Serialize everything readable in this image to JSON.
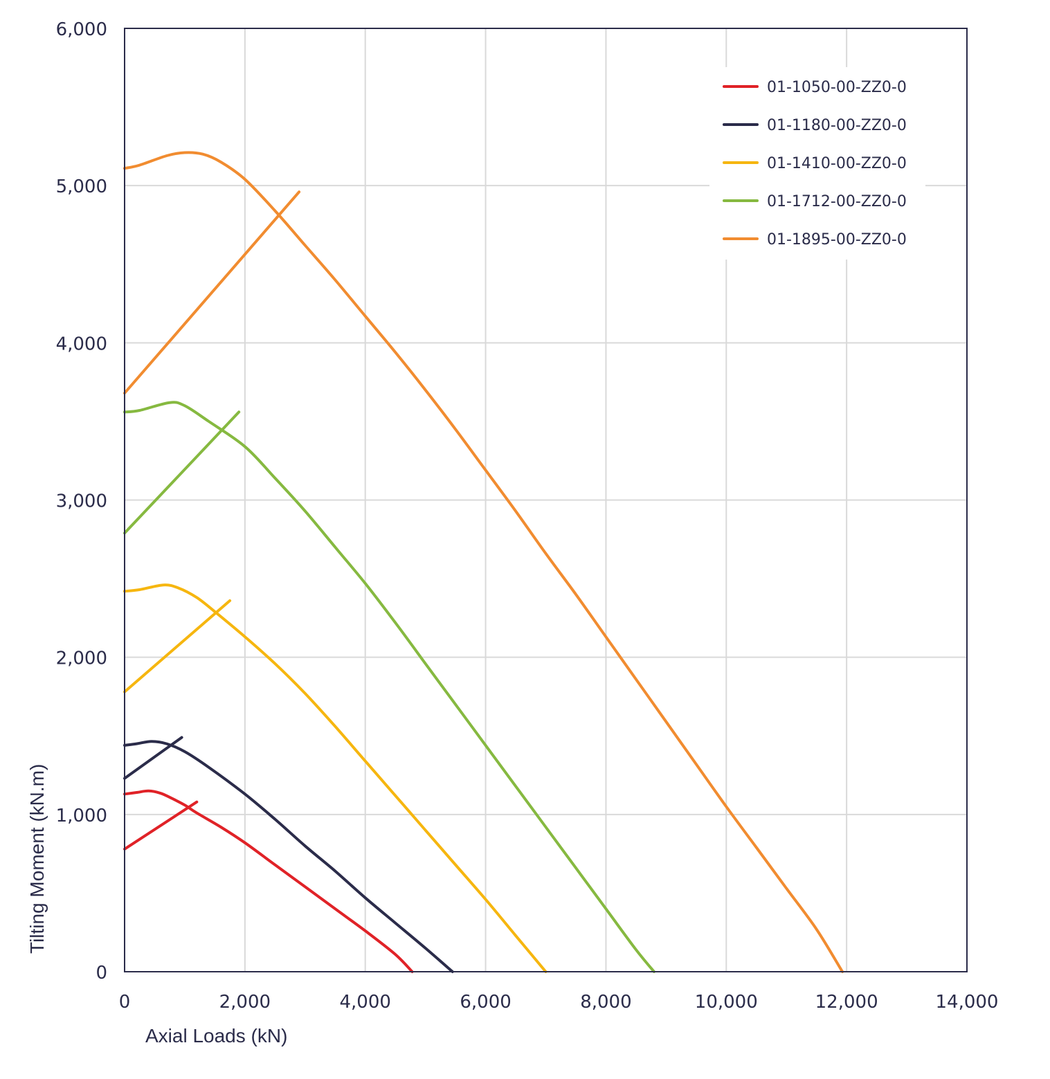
{
  "chart_data": {
    "type": "line",
    "title": "",
    "xlabel": "Axial Loads (kN)",
    "ylabel": "Tilting Moment (kN.m)",
    "xlim": [
      0,
      14000
    ],
    "ylim": [
      0,
      6000
    ],
    "x_ticks": [
      "0",
      "2,000",
      "4,000",
      "6,000",
      "8,000",
      "10,000",
      "12,000",
      "14,000"
    ],
    "y_ticks": [
      "0",
      "1,000",
      "2,000",
      "3,000",
      "4,000",
      "5,000",
      "6,000"
    ],
    "grid": true,
    "legend_position": "top-right",
    "series": [
      {
        "name": "01-1050-00-ZZ0-0",
        "color": "#e02227",
        "curve": [
          [
            0,
            1130
          ],
          [
            200,
            1140
          ],
          [
            400,
            1150
          ],
          [
            600,
            1135
          ],
          [
            800,
            1100
          ],
          [
            1000,
            1060
          ],
          [
            1200,
            1010
          ],
          [
            1600,
            920
          ],
          [
            2000,
            820
          ],
          [
            2500,
            680
          ],
          [
            3000,
            540
          ],
          [
            3500,
            400
          ],
          [
            4000,
            260
          ],
          [
            4500,
            110
          ],
          [
            4780,
            0
          ]
        ],
        "line": [
          [
            0,
            780
          ],
          [
            1200,
            1080
          ]
        ]
      },
      {
        "name": "01-1180-00-ZZ0-0",
        "color": "#2b2c4a",
        "curve": [
          [
            0,
            1440
          ],
          [
            200,
            1450
          ],
          [
            450,
            1465
          ],
          [
            700,
            1450
          ],
          [
            1000,
            1400
          ],
          [
            1400,
            1300
          ],
          [
            2000,
            1130
          ],
          [
            2500,
            970
          ],
          [
            3000,
            800
          ],
          [
            3500,
            640
          ],
          [
            4000,
            470
          ],
          [
            4500,
            310
          ],
          [
            5000,
            150
          ],
          [
            5450,
            0
          ]
        ],
        "line": [
          [
            0,
            1230
          ],
          [
            950,
            1490
          ]
        ]
      },
      {
        "name": "01-1410-00-ZZ0-0",
        "color": "#f6b60f",
        "curve": [
          [
            0,
            2420
          ],
          [
            250,
            2430
          ],
          [
            650,
            2460
          ],
          [
            900,
            2440
          ],
          [
            1200,
            2380
          ],
          [
            1500,
            2290
          ],
          [
            2000,
            2130
          ],
          [
            2500,
            1960
          ],
          [
            3000,
            1770
          ],
          [
            3500,
            1560
          ],
          [
            4000,
            1340
          ],
          [
            4500,
            1120
          ],
          [
            5000,
            900
          ],
          [
            5500,
            680
          ],
          [
            6000,
            460
          ],
          [
            6500,
            230
          ],
          [
            7000,
            0
          ]
        ],
        "line": [
          [
            0,
            1780
          ],
          [
            1750,
            2360
          ]
        ]
      },
      {
        "name": "01-1712-00-ZZ0-0",
        "color": "#86b940",
        "curve": [
          [
            0,
            3560
          ],
          [
            250,
            3570
          ],
          [
            750,
            3620
          ],
          [
            1000,
            3600
          ],
          [
            1400,
            3500
          ],
          [
            2000,
            3340
          ],
          [
            2500,
            3140
          ],
          [
            3000,
            2930
          ],
          [
            3500,
            2700
          ],
          [
            4000,
            2470
          ],
          [
            4500,
            2220
          ],
          [
            5000,
            1960
          ],
          [
            5500,
            1700
          ],
          [
            6000,
            1440
          ],
          [
            6500,
            1180
          ],
          [
            7000,
            920
          ],
          [
            7500,
            660
          ],
          [
            8000,
            400
          ],
          [
            8500,
            140
          ],
          [
            8800,
            0
          ]
        ],
        "line": [
          [
            0,
            2790
          ],
          [
            1900,
            3560
          ]
        ]
      },
      {
        "name": "01-1895-00-ZZ0-0",
        "color": "#f18c30",
        "curve": [
          [
            0,
            5110
          ],
          [
            250,
            5130
          ],
          [
            700,
            5190
          ],
          [
            1000,
            5210
          ],
          [
            1300,
            5200
          ],
          [
            1600,
            5150
          ],
          [
            2000,
            5040
          ],
          [
            2500,
            4840
          ],
          [
            3000,
            4620
          ],
          [
            3500,
            4400
          ],
          [
            4000,
            4170
          ],
          [
            4500,
            3940
          ],
          [
            5000,
            3700
          ],
          [
            5500,
            3450
          ],
          [
            6000,
            3190
          ],
          [
            6500,
            2930
          ],
          [
            7000,
            2660
          ],
          [
            7500,
            2400
          ],
          [
            8000,
            2130
          ],
          [
            8500,
            1860
          ],
          [
            9000,
            1590
          ],
          [
            9500,
            1320
          ],
          [
            10000,
            1050
          ],
          [
            10500,
            790
          ],
          [
            11000,
            530
          ],
          [
            11500,
            270
          ],
          [
            11930,
            0
          ]
        ],
        "line": [
          [
            0,
            3680
          ],
          [
            2900,
            4960
          ]
        ]
      }
    ]
  }
}
